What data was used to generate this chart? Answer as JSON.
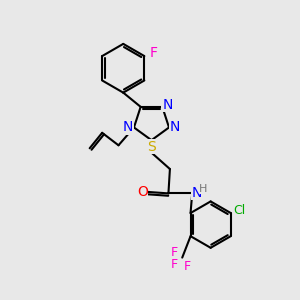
{
  "background_color": "#e8e8e8",
  "bond_color": "#000000",
  "atom_colors": {
    "N": "#0000ff",
    "O": "#ff0000",
    "S": "#ccaa00",
    "F": "#ff00cc",
    "Cl": "#00aa00",
    "H": "#777777",
    "C": "#000000"
  },
  "font_size": 9,
  "fig_size": [
    3.0,
    3.0
  ],
  "dpi": 100
}
